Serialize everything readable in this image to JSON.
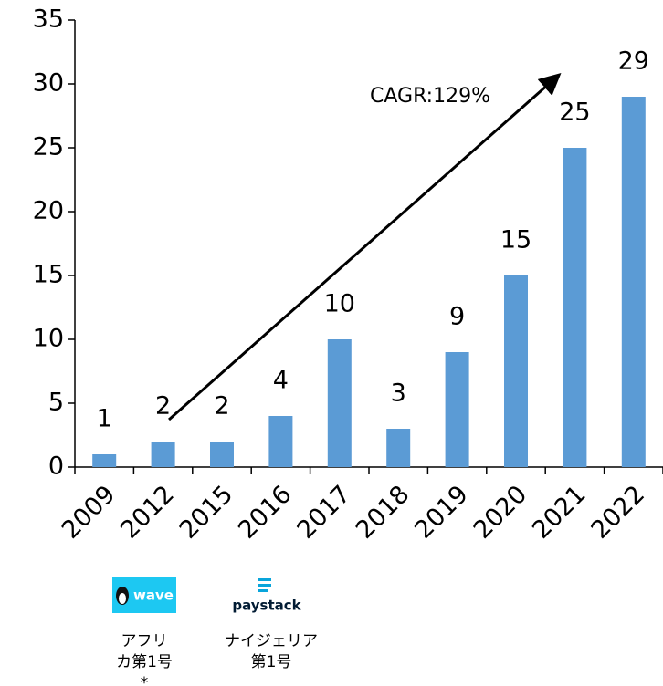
{
  "chart_data": {
    "type": "bar",
    "categories": [
      "2009",
      "2012",
      "2015",
      "2016",
      "2017",
      "2018",
      "2019",
      "2020",
      "2021",
      "2022"
    ],
    "values": [
      1,
      2,
      2,
      4,
      10,
      3,
      9,
      15,
      25,
      29
    ],
    "color": "#5b9bd5",
    "ylim": [
      0,
      35
    ],
    "yticks": [
      0,
      5,
      10,
      15,
      20,
      25,
      30,
      35
    ],
    "annotation": "CAGR:129%"
  },
  "logos": [
    {
      "label": "wave",
      "caption": [
        "アフリ",
        "カ第1号",
        "*"
      ]
    },
    {
      "label": "paystack",
      "caption": [
        "ナイジェリア",
        "第1号"
      ]
    }
  ]
}
